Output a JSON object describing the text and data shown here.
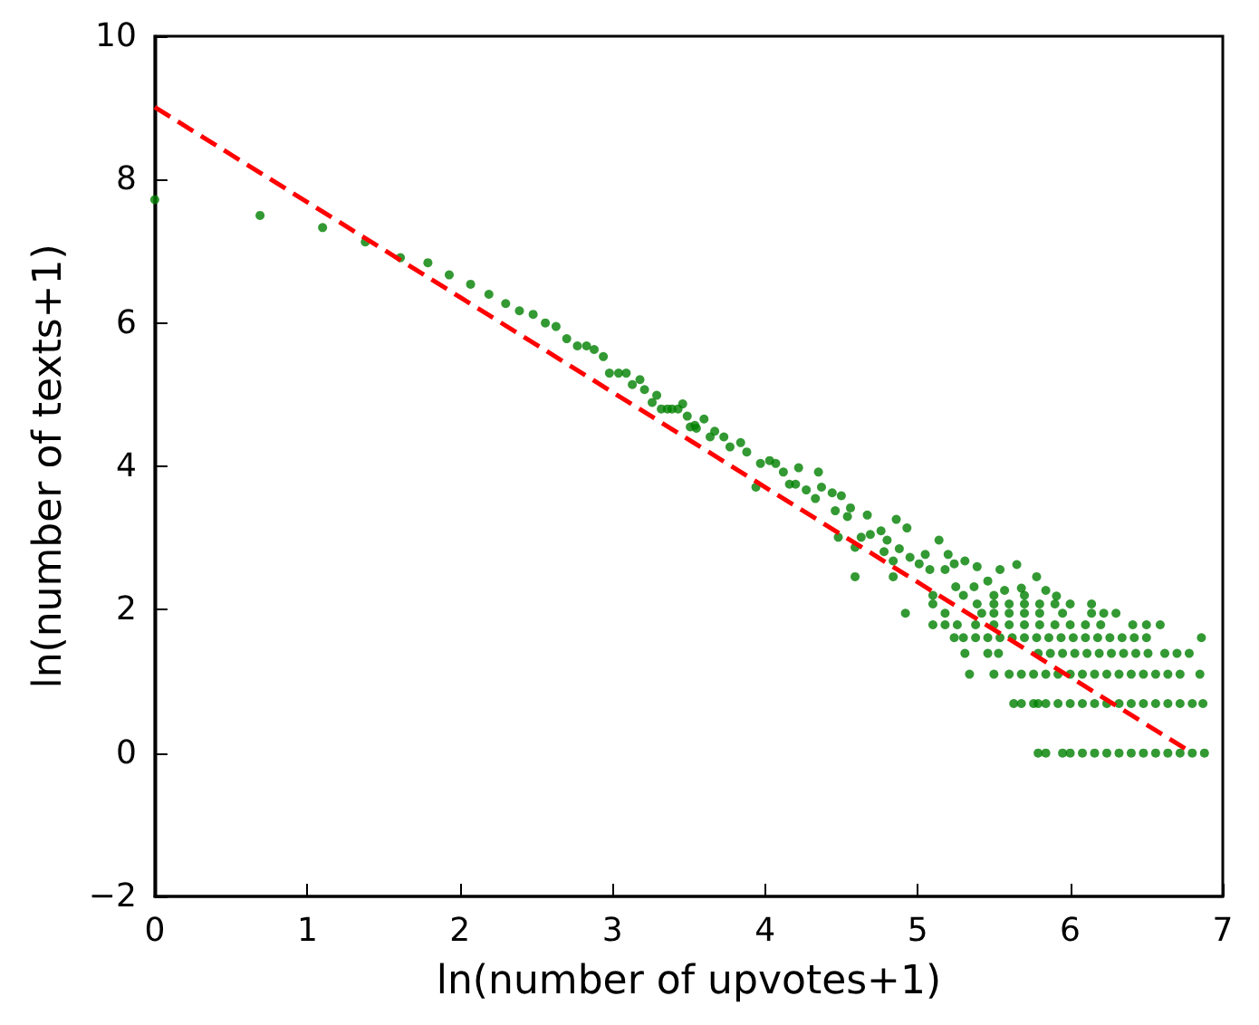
{
  "chart_data": {
    "type": "scatter",
    "xlabel": "ln(number of upvotes+1)",
    "ylabel": "ln(number of texts+1)",
    "xlim": [
      0,
      7
    ],
    "xticks": [
      0,
      1,
      2,
      3,
      4,
      5,
      6,
      7
    ],
    "ylim": [
      -2,
      10
    ],
    "yticks": [
      {
        "value": -2,
        "label": "−2"
      },
      0,
      2,
      4,
      6,
      8,
      10
    ],
    "series": [
      {
        "marker": "circle",
        "color": "#008000",
        "x": [
          0,
          0.69,
          1.1,
          1.38,
          1.61,
          1.79,
          1.93,
          2.07,
          2.19,
          2.3,
          2.39,
          2.48,
          2.56,
          2.63,
          2.7,
          2.77,
          2.83,
          2.88,
          2.94,
          2.98,
          3.04,
          3.09,
          3.13,
          3.18,
          3.21,
          3.26,
          3.29,
          3.32,
          3.36,
          3.39,
          3.43,
          3.46,
          3.49,
          3.51,
          3.55,
          3.54,
          3.6,
          3.64,
          3.67,
          3.73,
          3.77,
          3.84,
          3.88,
          3.94,
          3.97,
          4.03,
          4.07,
          4.12,
          4.16,
          4.22,
          4.2,
          4.27,
          4.35,
          4.37,
          4.33,
          4.44,
          4.5,
          4.46,
          4.56,
          4.54,
          4.67,
          4.48,
          4.59,
          4.63,
          4.69,
          4.76,
          4.8,
          4.86,
          4.93,
          4.78,
          4.84,
          4.59,
          4.88,
          4.95,
          5.01,
          5.05,
          5.14,
          5.2,
          5.08,
          5.18,
          5.24,
          5.31,
          5.39,
          5.54,
          5.65,
          5.78,
          4.84,
          5.25,
          5.37,
          5.46,
          5.57,
          5.68,
          5.84,
          5.91,
          5.1,
          5.3,
          5.5,
          5.7,
          5.1,
          5.39,
          5.5,
          5.6,
          5.7,
          5.8,
          5.9,
          6.0,
          6.14,
          4.92,
          5.18,
          5.42,
          5.5,
          5.6,
          5.7,
          5.8,
          5.95,
          6.14,
          6.22,
          6.3,
          5.1,
          5.18,
          5.26,
          5.38,
          5.5,
          5.6,
          5.7,
          5.8,
          5.9,
          6.0,
          6.1,
          6.2,
          6.41,
          6.5,
          6.59,
          5.24,
          5.3,
          5.38,
          5.46,
          5.54,
          5.62,
          5.7,
          5.78,
          5.86,
          5.94,
          6.02,
          6.1,
          6.18,
          6.26,
          6.34,
          6.42,
          6.5,
          6.86,
          5.31,
          5.46,
          5.53,
          5.79,
          5.87,
          5.95,
          6.03,
          6.11,
          6.19,
          6.27,
          6.35,
          6.43,
          6.51,
          6.62,
          6.7,
          6.78,
          5.34,
          5.5,
          5.6,
          5.68,
          5.76,
          5.84,
          5.92,
          6.0,
          6.08,
          6.16,
          6.24,
          6.32,
          6.4,
          6.48,
          6.56,
          6.64,
          6.72,
          6.85,
          5.63,
          5.68,
          5.76,
          5.79,
          5.84,
          5.92,
          6.0,
          6.08,
          6.16,
          6.24,
          6.32,
          6.4,
          6.48,
          6.56,
          6.64,
          6.72,
          6.8,
          6.87,
          5.79,
          5.84,
          5.95,
          6.0,
          6.08,
          6.16,
          6.24,
          6.32,
          6.4,
          6.48,
          6.56,
          6.64,
          6.72,
          6.8,
          6.88
        ],
        "values": [
          7.72,
          7.5,
          7.33,
          7.13,
          6.91,
          6.84,
          6.67,
          6.54,
          6.4,
          6.27,
          6.17,
          6.12,
          6.0,
          5.95,
          5.78,
          5.68,
          5.68,
          5.63,
          5.53,
          5.3,
          5.3,
          5.3,
          5.14,
          5.21,
          5.07,
          4.89,
          4.99,
          4.8,
          4.8,
          4.8,
          4.8,
          4.87,
          4.7,
          4.55,
          4.53,
          4.57,
          4.66,
          4.41,
          4.49,
          4.41,
          4.27,
          4.33,
          4.2,
          3.71,
          4.04,
          4.08,
          4.04,
          3.92,
          3.75,
          3.98,
          3.75,
          3.67,
          3.92,
          3.71,
          3.55,
          3.63,
          3.59,
          3.38,
          3.42,
          3.3,
          3.32,
          3.01,
          2.87,
          3.01,
          3.05,
          3.1,
          2.97,
          3.26,
          3.14,
          2.81,
          2.68,
          2.46,
          2.85,
          2.73,
          2.64,
          2.77,
          2.97,
          2.77,
          2.56,
          2.56,
          2.64,
          2.68,
          2.6,
          2.56,
          2.63,
          2.46,
          2.46,
          2.32,
          2.32,
          2.4,
          2.27,
          2.3,
          2.27,
          2.19,
          2.2,
          2.2,
          2.2,
          2.2,
          2.08,
          2.08,
          2.08,
          2.08,
          2.08,
          2.08,
          2.08,
          2.08,
          2.08,
          1.95,
          1.95,
          1.95,
          1.95,
          1.95,
          1.95,
          1.95,
          1.95,
          1.95,
          1.95,
          1.95,
          1.79,
          1.79,
          1.79,
          1.79,
          1.79,
          1.79,
          1.79,
          1.79,
          1.79,
          1.79,
          1.79,
          1.79,
          1.79,
          1.79,
          1.79,
          1.61,
          1.61,
          1.61,
          1.61,
          1.61,
          1.61,
          1.61,
          1.61,
          1.61,
          1.61,
          1.61,
          1.61,
          1.61,
          1.61,
          1.61,
          1.61,
          1.61,
          1.61,
          1.39,
          1.39,
          1.39,
          1.39,
          1.39,
          1.39,
          1.39,
          1.39,
          1.39,
          1.39,
          1.39,
          1.39,
          1.39,
          1.39,
          1.39,
          1.39,
          1.1,
          1.1,
          1.1,
          1.1,
          1.1,
          1.1,
          1.1,
          1.1,
          1.1,
          1.1,
          1.1,
          1.1,
          1.1,
          1.1,
          1.1,
          1.1,
          1.1,
          1.1,
          0.69,
          0.69,
          0.69,
          0.69,
          0.69,
          0.69,
          0.69,
          0.69,
          0.69,
          0.69,
          0.69,
          0.69,
          0.69,
          0.69,
          0.69,
          0.69,
          0.69,
          0.69,
          0,
          0,
          0,
          0,
          0,
          0,
          0,
          0,
          0,
          0,
          0,
          0,
          0,
          0,
          0
        ]
      },
      {
        "type": "line",
        "marker": "none",
        "line_style": "dashed",
        "color": "#ff0000",
        "x": [
          0,
          6.8
        ],
        "values": [
          9.01,
          0
        ]
      }
    ]
  }
}
